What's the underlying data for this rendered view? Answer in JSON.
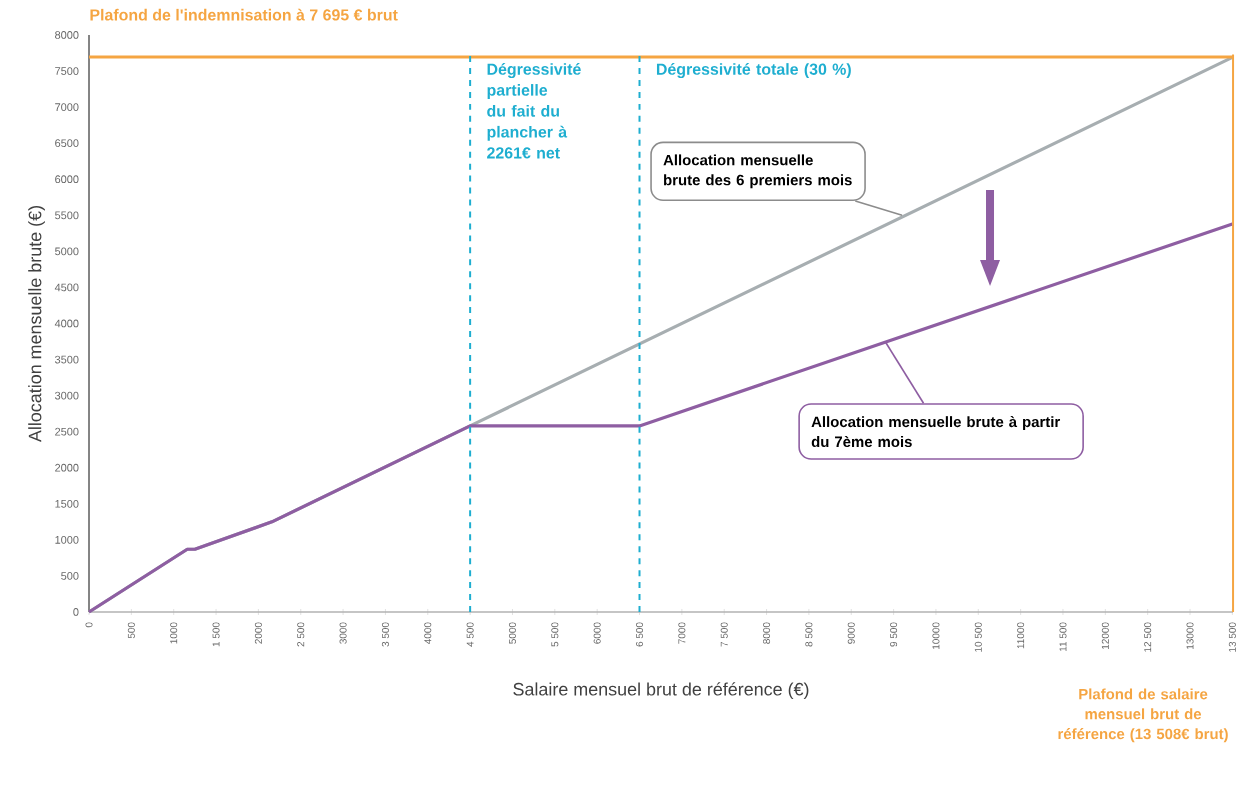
{
  "chart_data": {
    "type": "line",
    "xlabel": "Salaire mensuel brut de référence (€)",
    "ylabel": "Allocation mensuelle brute (€)",
    "x": [
      0,
      1160,
      1250,
      2160,
      4500,
      6500,
      13500
    ],
    "series": [
      {
        "color": "#a7aeb1",
        "x": [
          0,
          1160,
          1250,
          2160,
          4500,
          13500
        ],
        "values": [
          0,
          870,
          870,
          1250,
          2580,
          7690
        ]
      },
      {
        "color": "#8e5ea2",
        "values": [
          0,
          870,
          870,
          1250,
          2580,
          2580,
          5380
        ]
      }
    ],
    "xlim": [
      0,
      13508
    ],
    "ylim": [
      0,
      8000
    ],
    "xticks": [
      0,
      500,
      1000,
      {
        "value": 1500,
        "label": "1 500"
      },
      2000,
      {
        "value": 2500,
        "label": "2 500"
      },
      3000,
      {
        "value": 3500,
        "label": "3 500"
      },
      4000,
      {
        "value": 4500,
        "label": "4 500"
      },
      5000,
      {
        "value": 5500,
        "label": "5 500"
      },
      6000,
      {
        "value": 6500,
        "label": "6 500"
      },
      7000,
      {
        "value": 7500,
        "label": "7 500"
      },
      8000,
      {
        "value": 8500,
        "label": "8 500"
      },
      9000,
      {
        "value": 9500,
        "label": "9 500"
      },
      10000,
      {
        "value": 10500,
        "label": "10 500"
      },
      11000,
      {
        "value": 11500,
        "label": "11 500"
      },
      12000,
      {
        "value": 12500,
        "label": "12 500"
      },
      13000,
      {
        "value": 13500,
        "label": "13 500"
      }
    ],
    "yticks": [
      0,
      500,
      1000,
      1500,
      2000,
      2500,
      3000,
      3500,
      4000,
      4500,
      5000,
      5500,
      6000,
      6500,
      7000,
      7500,
      8000
    ],
    "ref_lines": [
      {
        "axis": "y",
        "value": 7695,
        "label": "Plafond de l'indemnisation à 7 695 € brut",
        "color": "#f5a542",
        "line_style": "solid"
      },
      {
        "axis": "x",
        "value": 4500,
        "label": "Dégressivité partielle du fait du plancher à 2261€ net",
        "color": "#1eaed0",
        "line_style": "dashed"
      },
      {
        "axis": "x",
        "value": 6500,
        "label": "Dégressivité totale (30 %)",
        "color": "#1eaed0",
        "line_style": "dashed"
      },
      {
        "axis": "x",
        "value": 13508,
        "label": "Plafond de salaire mensuel brut de référence (13 508€ brut)",
        "color": "#f5a542",
        "line_style": "solid"
      }
    ],
    "annotations": [
      {
        "text": "Allocation mensuelle brute des 6 premiers mois",
        "x": 9600,
        "y": 5500
      },
      {
        "text": "Allocation mensuelle brute à partir du 7ème mois",
        "x": 9400,
        "y": 3750
      }
    ],
    "marker": "none",
    "line_style": "solid"
  }
}
